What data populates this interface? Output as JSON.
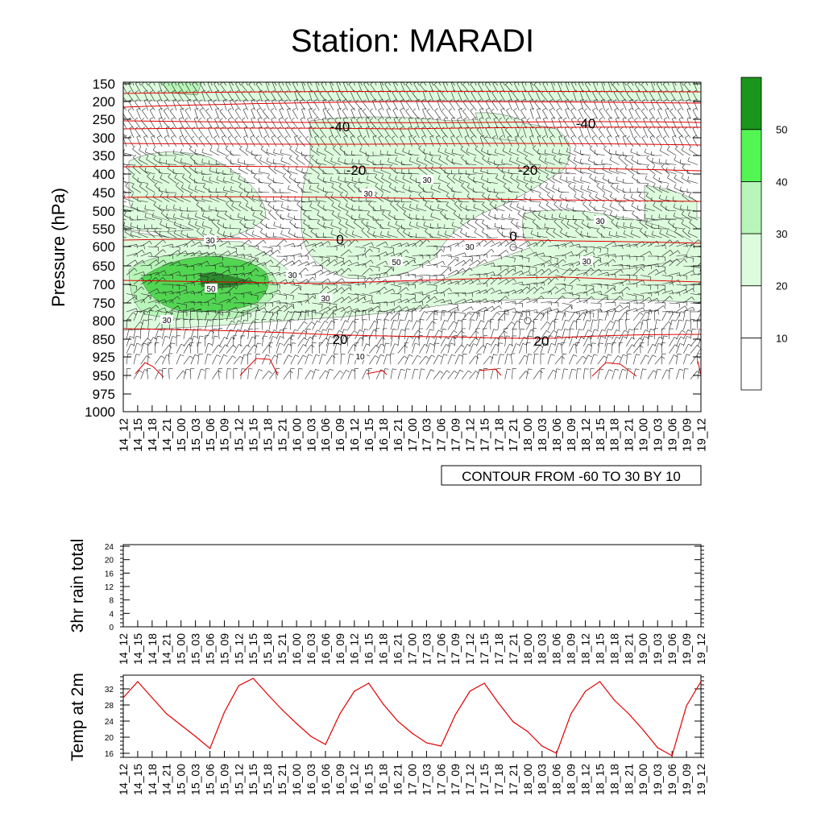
{
  "title": "Station: MARADI",
  "chart_data": [
    {
      "type": "heatmap",
      "ylabel": "Pressure (hPa)",
      "y_ticks": [
        "150",
        "200",
        "250",
        "300",
        "350",
        "400",
        "450",
        "500",
        "550",
        "600",
        "650",
        "700",
        "750",
        "800",
        "850",
        "925",
        "950",
        "975",
        "1000"
      ],
      "x_ticks": [
        "14_12",
        "14_15",
        "14_18",
        "14_21",
        "15_00",
        "15_03",
        "15_06",
        "15_09",
        "15_12",
        "15_15",
        "15_18",
        "15_21",
        "16_00",
        "16_03",
        "16_06",
        "16_09",
        "16_12",
        "16_15",
        "16_18",
        "16_21",
        "17_00",
        "17_03",
        "17_06",
        "17_09",
        "17_12",
        "17_15",
        "17_18",
        "17_21",
        "18_00",
        "18_03",
        "18_06",
        "18_09",
        "18_12",
        "18_15",
        "18_18",
        "18_21",
        "19_00",
        "19_03",
        "19_06",
        "19_09",
        "19_12"
      ],
      "info_label": "CONTOUR FROM -60 TO 30 BY 10",
      "colorbar": {
        "labels": [
          "10",
          "20",
          "30",
          "40",
          "50"
        ],
        "colors": [
          "#ffffff",
          "#ffffff",
          "#ddfcdd",
          "#b8f5b8",
          "#52f552",
          "#1a961a"
        ]
      },
      "fill_colors": {
        "c20": "#ddfcdd",
        "c30": "#b8f5b8",
        "c40": "#52d652",
        "c50": "#2d8b2d"
      },
      "temperature_contours": [
        {
          "label": "-40",
          "pressure": 262
        },
        {
          "label": "-20",
          "pressure": 380
        },
        {
          "label": "0",
          "pressure": 580
        },
        {
          "label": "20",
          "pressure": 845
        }
      ],
      "wind_contour_labels": [
        "30",
        "30",
        "30",
        "50",
        "30",
        "30",
        "30",
        "30",
        "30",
        "30",
        "10",
        "50"
      ],
      "contour_color": "#e00000"
    },
    {
      "type": "line",
      "ylabel": "3hr rain total",
      "y_ticks": [
        "0",
        "4",
        "8",
        "12",
        "16",
        "20",
        "24"
      ],
      "ylim": [
        0,
        24
      ],
      "x_ticks": [
        "14_12",
        "14_15",
        "14_18",
        "14_21",
        "15_00",
        "15_03",
        "15_06",
        "15_09",
        "15_12",
        "15_15",
        "15_18",
        "15_21",
        "16_00",
        "16_03",
        "16_06",
        "16_09",
        "16_12",
        "16_15",
        "16_18",
        "16_21",
        "17_00",
        "17_03",
        "17_06",
        "17_09",
        "17_12",
        "17_15",
        "17_18",
        "17_21",
        "18_00",
        "18_03",
        "18_06",
        "18_09",
        "18_12",
        "18_15",
        "18_18",
        "18_21",
        "19_00",
        "19_03",
        "19_06",
        "19_09",
        "19_12"
      ],
      "values": []
    },
    {
      "type": "line",
      "ylabel": "Temp at 2m",
      "y_ticks": [
        "16",
        "20",
        "24",
        "28",
        "32"
      ],
      "ylim": [
        15,
        35
      ],
      "x_ticks": [
        "14_12",
        "14_15",
        "14_18",
        "14_21",
        "15_00",
        "15_03",
        "15_06",
        "15_09",
        "15_12",
        "15_15",
        "15_18",
        "15_21",
        "16_00",
        "16_03",
        "16_06",
        "16_09",
        "16_12",
        "16_15",
        "16_18",
        "16_21",
        "17_00",
        "17_03",
        "17_06",
        "17_09",
        "17_12",
        "17_15",
        "17_18",
        "17_21",
        "18_00",
        "18_03",
        "18_06",
        "18_09",
        "18_12",
        "18_15",
        "18_18",
        "18_21",
        "19_00",
        "19_03",
        "19_06",
        "19_09",
        "19_12"
      ],
      "values": [
        29.8,
        33.8,
        29.8,
        25.8,
        23,
        20.2,
        17.2,
        26.2,
        32.8,
        34.6,
        30.6,
        26.8,
        23.4,
        20.2,
        18.2,
        25.8,
        31.4,
        33.4,
        28.2,
        24,
        21,
        18.6,
        17.8,
        25.6,
        31.4,
        33.4,
        28.4,
        23.8,
        21.4,
        17.8,
        16,
        25.8,
        31.4,
        33.8,
        29.2,
        25.8,
        21.8,
        17.4,
        15.4,
        27.8,
        33.8
      ],
      "color": "#e00000"
    }
  ]
}
